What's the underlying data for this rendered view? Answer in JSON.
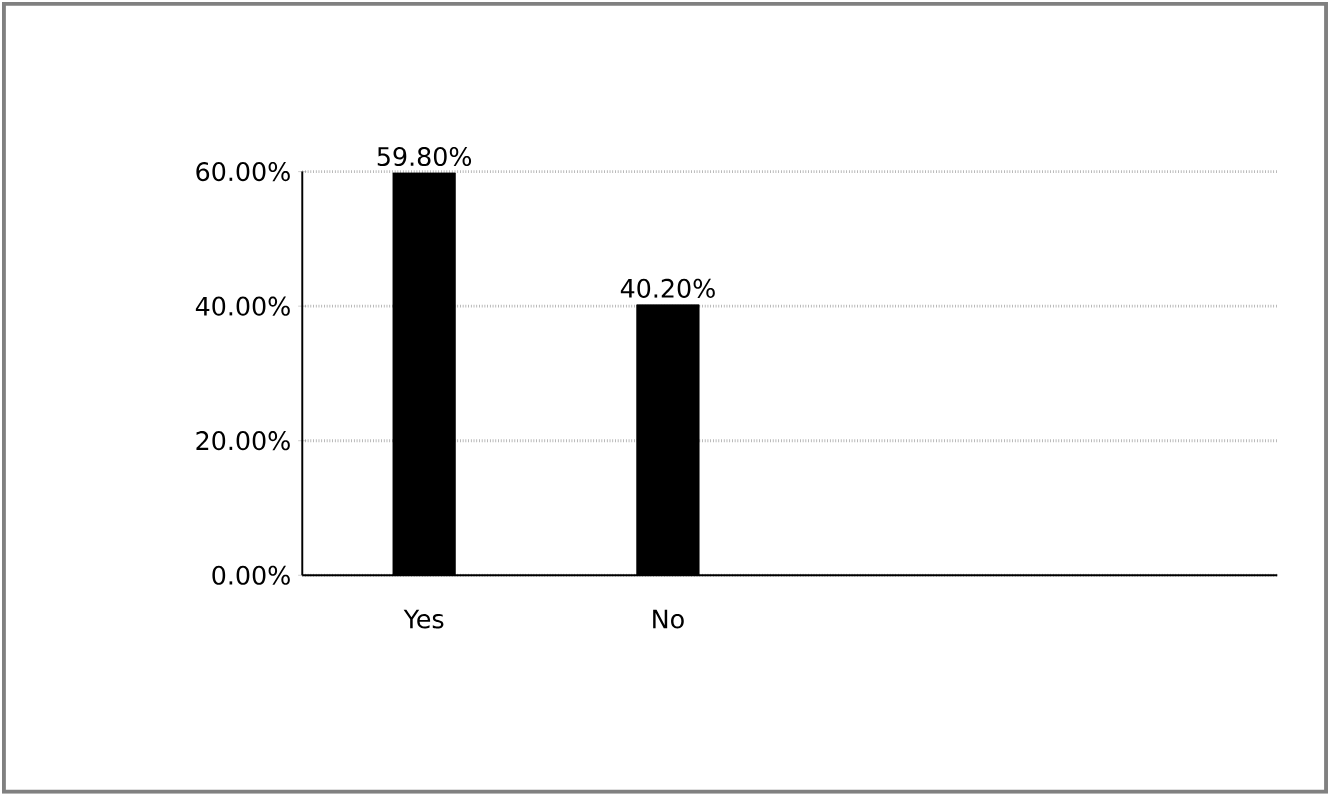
{
  "chart_data": {
    "type": "bar",
    "categories": [
      "Yes",
      "No",
      null,
      null
    ],
    "values": [
      59.8,
      40.2,
      null,
      null
    ],
    "value_labels": [
      "59.80%",
      "40.20%",
      null,
      null
    ],
    "color": "#000000",
    "ylim": [
      0,
      60
    ],
    "yticks": [
      {
        "value": 0,
        "label": "0.00%"
      },
      {
        "value": 20,
        "label": "20.00%"
      },
      {
        "value": 40,
        "label": "40.00%"
      },
      {
        "value": 60,
        "label": "60.00%"
      }
    ],
    "grid": "y"
  }
}
